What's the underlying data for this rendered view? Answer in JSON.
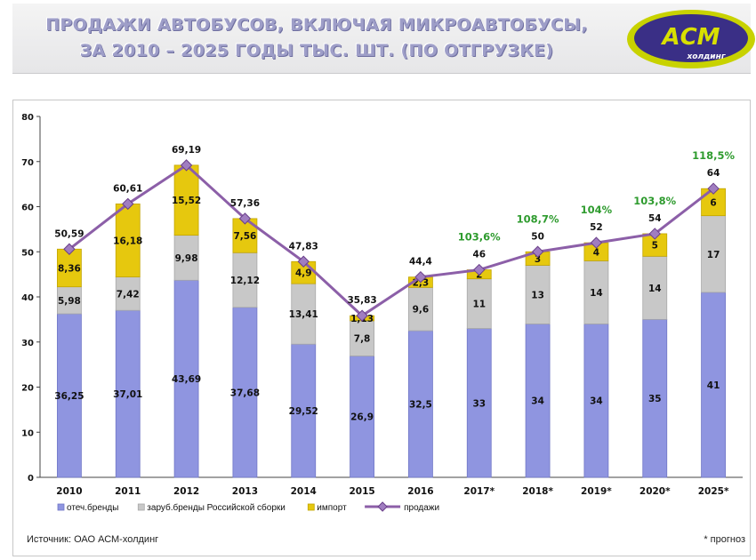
{
  "header": {
    "title_line1": "ПРОДАЖИ АВТОБУСОВ, ВКЛЮЧАЯ МИКРОАВТОБУСЫ,",
    "title_line2": "ЗА 2010 – 2025 ГОДЫ ТЫС. ШТ. (ПО ОТГРУЗКЕ)",
    "logo_text": "АСМ",
    "logo_subtext": "холдинг"
  },
  "footer": {
    "source": "Источник: ОАО АСМ-холдинг",
    "note": "* прогноз"
  },
  "colors": {
    "domestic": "#8f95e0",
    "foreign_assembly": "#c8c8c8",
    "import": "#e6c80e",
    "sales_line": "#8c5fa8",
    "growth_label": "#2e9b2e",
    "logo_bg": "#3a2f86",
    "logo_ring": "#c8d200"
  },
  "chart_data": {
    "type": "bar",
    "stacked": true,
    "categories": [
      "2010",
      "2011",
      "2012",
      "2013",
      "2014",
      "2015",
      "2016",
      "2017*",
      "2018*",
      "2019*",
      "2020*",
      "2025*"
    ],
    "series": [
      {
        "name": "отеч.бренды",
        "type": "bar",
        "values": [
          36.25,
          37.01,
          43.69,
          37.68,
          29.52,
          26.9,
          32.5,
          33,
          34,
          34,
          35,
          41
        ],
        "labels": [
          "36,25",
          "37,01",
          "43,69",
          "37,68",
          "29,52",
          "26,9",
          "32,5",
          "33",
          "34",
          "34",
          "35",
          "41"
        ]
      },
      {
        "name": "заруб.бренды Российской сборки",
        "type": "bar",
        "values": [
          5.98,
          7.42,
          9.98,
          12.12,
          13.41,
          7.8,
          9.6,
          11,
          13,
          14,
          14,
          17
        ],
        "labels": [
          "5,98",
          "7,42",
          "9,98",
          "12,12",
          "13,41",
          "7,8",
          "9,6",
          "11",
          "13",
          "14",
          "14",
          "17"
        ]
      },
      {
        "name": "импорт",
        "type": "bar",
        "values": [
          8.36,
          16.18,
          15.52,
          7.56,
          4.9,
          1.13,
          2.3,
          2,
          3,
          4,
          5,
          6
        ],
        "labels": [
          "8,36",
          "16,18",
          "15,52",
          "7,56",
          "4,9",
          "1,13",
          "2,3",
          "2",
          "3",
          "4",
          "5",
          "6"
        ]
      },
      {
        "name": "продажи",
        "type": "line",
        "values": [
          50.59,
          60.61,
          69.19,
          57.36,
          47.83,
          35.83,
          44.4,
          46,
          50,
          52,
          54,
          64
        ],
        "labels": [
          "50,59",
          "60,61",
          "69,19",
          "57,36",
          "47,83",
          "35,83",
          "44,4",
          "46",
          "50",
          "52",
          "54",
          "64"
        ]
      }
    ],
    "growth_labels": [
      "",
      "",
      "",
      "",
      "",
      "",
      "",
      "103,6%",
      "108,7%",
      "104%",
      "103,8%",
      "118,5%"
    ],
    "y_ticks": [
      "0",
      "10",
      "20",
      "30",
      "40",
      "50",
      "60",
      "70",
      "80"
    ],
    "ylim": [
      0,
      80
    ],
    "grid": false,
    "legend_position": "bottom-left"
  }
}
